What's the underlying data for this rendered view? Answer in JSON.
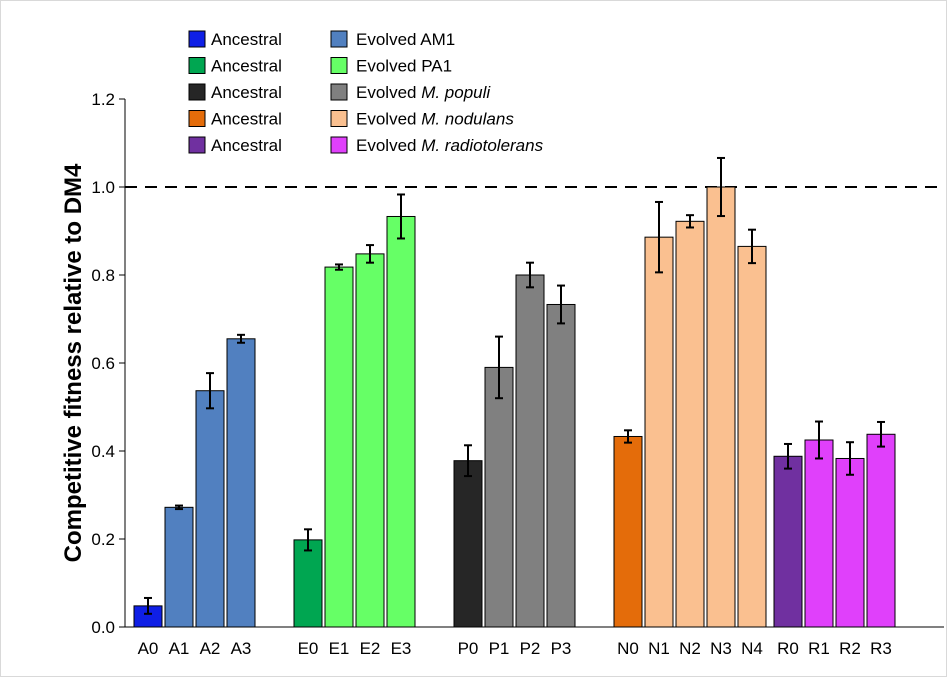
{
  "chart_data": {
    "type": "bar",
    "ylabel": "Competitive fitness relative to DM4",
    "xlabel": "",
    "ylim": [
      0,
      1.2
    ],
    "yticks": [
      "0.0",
      "0.2",
      "0.4",
      "0.6",
      "0.8",
      "1.0",
      "1.2"
    ],
    "reference_line": {
      "value": 1.0,
      "style": "dashed"
    },
    "grid": false,
    "legend_position": "top-left",
    "groups": [
      {
        "bars": [
          {
            "label": "A0",
            "value": 0.048,
            "error": 0.018,
            "color": "#0f1fe6"
          },
          {
            "label": "A1",
            "value": 0.272,
            "error": 0.004,
            "color": "#5180c0"
          },
          {
            "label": "A2",
            "value": 0.537,
            "error": 0.04,
            "color": "#5180c0"
          },
          {
            "label": "A3",
            "value": 0.655,
            "error": 0.009,
            "color": "#5180c0"
          }
        ]
      },
      {
        "bars": [
          {
            "label": "E0",
            "value": 0.198,
            "error": 0.024,
            "color": "#00a651"
          },
          {
            "label": "E1",
            "value": 0.818,
            "error": 0.006,
            "color": "#66ff66"
          },
          {
            "label": "E2",
            "value": 0.848,
            "error": 0.02,
            "color": "#66ff66"
          },
          {
            "label": "E3",
            "value": 0.933,
            "error": 0.05,
            "color": "#66ff66"
          }
        ]
      },
      {
        "bars": [
          {
            "label": "P0",
            "value": 0.378,
            "error": 0.035,
            "color": "#262626"
          },
          {
            "label": "P1",
            "value": 0.59,
            "error": 0.07,
            "color": "#808080"
          },
          {
            "label": "P2",
            "value": 0.8,
            "error": 0.028,
            "color": "#808080"
          },
          {
            "label": "P3",
            "value": 0.733,
            "error": 0.043,
            "color": "#808080"
          }
        ]
      },
      {
        "bars": [
          {
            "label": "N0",
            "value": 0.433,
            "error": 0.014,
            "color": "#e46c0a"
          },
          {
            "label": "N1",
            "value": 0.886,
            "error": 0.08,
            "color": "#fac090"
          },
          {
            "label": "N2",
            "value": 0.922,
            "error": 0.014,
            "color": "#fac090"
          },
          {
            "label": "N3",
            "value": 1.0,
            "error": 0.066,
            "color": "#fac090"
          },
          {
            "label": "N4",
            "value": 0.865,
            "error": 0.038,
            "color": "#fac090"
          }
        ]
      },
      {
        "bars": [
          {
            "label": "R0",
            "value": 0.388,
            "error": 0.028,
            "color": "#7030a0"
          },
          {
            "label": "R1",
            "value": 0.425,
            "error": 0.042,
            "color": "#e040fb"
          },
          {
            "label": "R2",
            "value": 0.383,
            "error": 0.037,
            "color": "#e040fb"
          },
          {
            "label": "R3",
            "value": 0.438,
            "error": 0.028,
            "color": "#e040fb"
          }
        ]
      }
    ],
    "legend": [
      {
        "ancestral": {
          "text": "Ancestral",
          "color": "#0f1fe6"
        },
        "evolved": {
          "prefix": "Evolved ",
          "italic": "",
          "suffix": "AM1",
          "color": "#5180c0"
        }
      },
      {
        "ancestral": {
          "text": "Ancestral",
          "color": "#00a651"
        },
        "evolved": {
          "prefix": "Evolved ",
          "italic": "",
          "suffix": "PA1",
          "color": "#66ff66"
        }
      },
      {
        "ancestral": {
          "text": "Ancestral",
          "color": "#262626"
        },
        "evolved": {
          "prefix": "Evolved ",
          "italic": "M. populi",
          "suffix": "",
          "color": "#808080"
        }
      },
      {
        "ancestral": {
          "text": "Ancestral",
          "color": "#e46c0a"
        },
        "evolved": {
          "prefix": "Evolved ",
          "italic": "M. nodulans",
          "suffix": "",
          "color": "#fac090"
        }
      },
      {
        "ancestral": {
          "text": "Ancestral",
          "color": "#7030a0"
        },
        "evolved": {
          "prefix": "Evolved ",
          "italic": "M. radiotolerans",
          "suffix": "",
          "color": "#e040fb"
        }
      }
    ]
  }
}
